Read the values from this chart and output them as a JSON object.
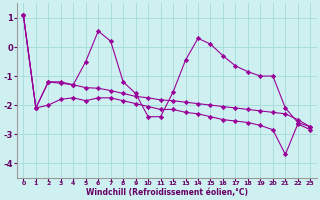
{
  "xlabel": "Windchill (Refroidissement éolien,°C)",
  "background_color": "#cff0f0",
  "grid_color": "#aadddd",
  "line_color": "#990099",
  "marker": "D",
  "xlim": [
    -0.5,
    23.5
  ],
  "ylim": [
    -4.5,
    1.5
  ],
  "yticks": [
    1,
    0,
    -1,
    -2,
    -3,
    -4
  ],
  "xticks": [
    0,
    1,
    2,
    3,
    4,
    5,
    6,
    7,
    8,
    9,
    10,
    11,
    12,
    13,
    14,
    15,
    16,
    17,
    18,
    19,
    20,
    21,
    22,
    23
  ],
  "series": [
    [
      1.1,
      -2.1,
      -1.2,
      -1.2,
      -1.3,
      -0.5,
      0.55,
      0.2,
      -1.2,
      -1.6,
      -2.4,
      -2.4,
      -1.55,
      -0.45,
      0.3,
      0.1,
      -0.3,
      -0.65,
      -0.85,
      -1.0,
      -1.0,
      -2.1,
      -2.6,
      -2.75
    ],
    [
      1.1,
      -2.1,
      -2.0,
      -1.8,
      -1.75,
      -1.85,
      -1.75,
      -1.75,
      -1.85,
      -1.95,
      -2.05,
      -2.15,
      -2.15,
      -2.25,
      -2.3,
      -2.4,
      -2.5,
      -2.55,
      -2.6,
      -2.7,
      -2.85,
      -3.7,
      -2.65,
      -2.85
    ],
    [
      1.1,
      -2.1,
      -1.2,
      -1.25,
      -1.3,
      -1.4,
      -1.42,
      -1.5,
      -1.6,
      -1.7,
      -1.75,
      -1.82,
      -1.85,
      -1.9,
      -1.95,
      -2.0,
      -2.05,
      -2.1,
      -2.15,
      -2.2,
      -2.25,
      -2.3,
      -2.5,
      -2.75
    ]
  ]
}
